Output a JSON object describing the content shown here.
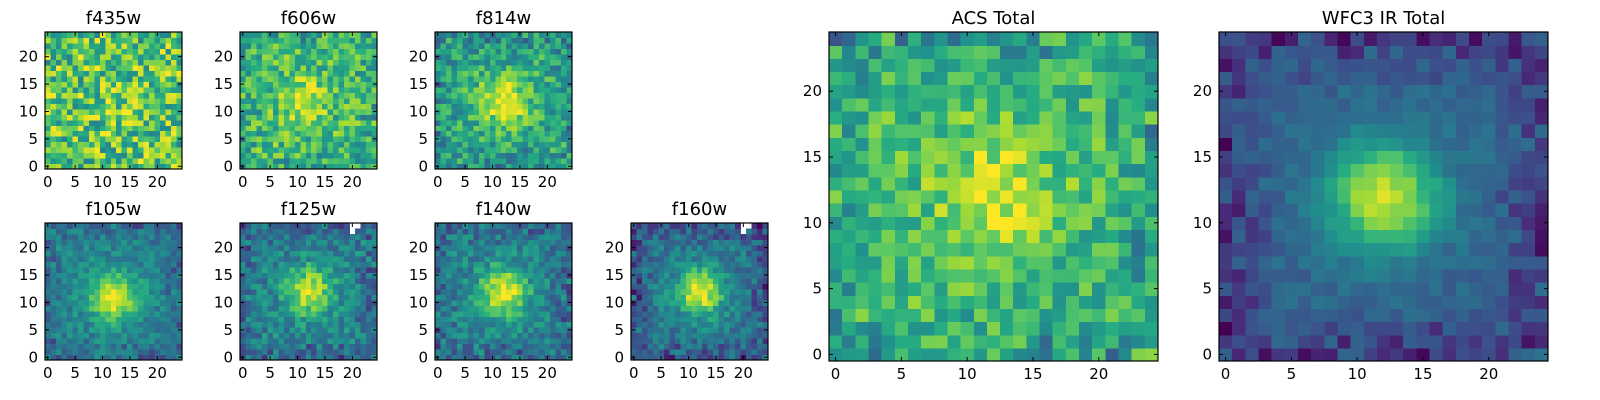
{
  "chart_data": [
    {
      "type": "heatmap",
      "title": "f435w",
      "x_ticks": [
        "0",
        "5",
        "10",
        "15",
        "20"
      ],
      "y_ticks": [
        "0",
        "5",
        "10",
        "15",
        "20"
      ],
      "grid_size": 25,
      "colormap": "viridis",
      "blob": {
        "x": 12,
        "y": 12,
        "strength": 0.05
      },
      "noise": 0.55,
      "base": 0.72,
      "edge_dark": 0.0,
      "masked_corner": false
    },
    {
      "type": "heatmap",
      "title": "f606w",
      "x_ticks": [
        "0",
        "5",
        "10",
        "15",
        "20"
      ],
      "y_ticks": [
        "0",
        "5",
        "10",
        "15",
        "20"
      ],
      "grid_size": 25,
      "colormap": "viridis",
      "blob": {
        "x": 11,
        "y": 12,
        "strength": 0.25
      },
      "noise": 0.42,
      "base": 0.68,
      "edge_dark": 0.15,
      "masked_corner": false
    },
    {
      "type": "heatmap",
      "title": "f814w",
      "x_ticks": [
        "0",
        "5",
        "10",
        "15",
        "20"
      ],
      "y_ticks": [
        "0",
        "5",
        "10",
        "15",
        "20"
      ],
      "grid_size": 25,
      "colormap": "viridis",
      "blob": {
        "x": 12,
        "y": 12,
        "strength": 0.45
      },
      "noise": 0.38,
      "base": 0.6,
      "edge_dark": 0.2,
      "masked_corner": false
    },
    {
      "type": "heatmap",
      "title": "f105w",
      "x_ticks": [
        "0",
        "5",
        "10",
        "15",
        "20"
      ],
      "y_ticks": [
        "0",
        "5",
        "10",
        "15",
        "20"
      ],
      "grid_size": 25,
      "colormap": "viridis",
      "blob": {
        "x": 12,
        "y": 11,
        "strength": 0.55
      },
      "noise": 0.22,
      "base": 0.45,
      "edge_dark": 0.2,
      "masked_corner": false
    },
    {
      "type": "heatmap",
      "title": "f125w",
      "x_ticks": [
        "0",
        "5",
        "10",
        "15",
        "20"
      ],
      "y_ticks": [
        "0",
        "5",
        "10",
        "15",
        "20"
      ],
      "grid_size": 25,
      "colormap": "viridis",
      "blob": {
        "x": 12,
        "y": 12,
        "strength": 0.5
      },
      "noise": 0.3,
      "base": 0.45,
      "edge_dark": 0.25,
      "masked_corner": true
    },
    {
      "type": "heatmap",
      "title": "f140w",
      "x_ticks": [
        "0",
        "5",
        "10",
        "15",
        "20"
      ],
      "y_ticks": [
        "0",
        "5",
        "10",
        "15",
        "20"
      ],
      "grid_size": 25,
      "colormap": "viridis",
      "blob": {
        "x": 12,
        "y": 12,
        "strength": 0.55
      },
      "noise": 0.28,
      "base": 0.45,
      "edge_dark": 0.25,
      "masked_corner": false
    },
    {
      "type": "heatmap",
      "title": "f160w",
      "x_ticks": [
        "0",
        "5",
        "10",
        "15",
        "20"
      ],
      "y_ticks": [
        "0",
        "5",
        "10",
        "15",
        "20"
      ],
      "grid_size": 25,
      "colormap": "viridis",
      "blob": {
        "x": 12,
        "y": 12,
        "strength": 0.6
      },
      "noise": 0.25,
      "base": 0.4,
      "edge_dark": 0.3,
      "masked_corner": true
    },
    {
      "type": "heatmap",
      "title": "ACS Total",
      "x_ticks": [
        "0",
        "5",
        "10",
        "15",
        "20"
      ],
      "y_ticks": [
        "0",
        "5",
        "10",
        "15",
        "20"
      ],
      "grid_size": 25,
      "colormap": "viridis",
      "blob": {
        "x": 12,
        "y": 12,
        "strength": 0.3
      },
      "noise": 0.35,
      "base": 0.68,
      "edge_dark": 0.25,
      "masked_corner": false
    },
    {
      "type": "heatmap",
      "title": "WFC3 IR Total",
      "x_ticks": [
        "0",
        "5",
        "10",
        "15",
        "20"
      ],
      "y_ticks": [
        "0",
        "5",
        "10",
        "15",
        "20"
      ],
      "grid_size": 25,
      "colormap": "viridis",
      "blob": {
        "x": 12,
        "y": 12,
        "strength": 0.6
      },
      "noise": 0.12,
      "base": 0.32,
      "edge_dark": 0.3,
      "masked_corner": false
    }
  ]
}
